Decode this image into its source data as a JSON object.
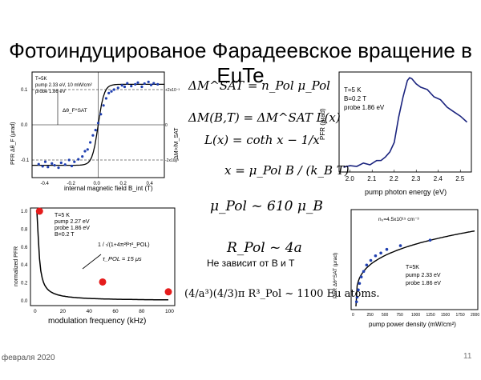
{
  "slide": {
    "title": "Фотоиндуцированое Фарадеевское вращение в EuTe",
    "date": "февраля 2020",
    "page": "11"
  },
  "formulas": {
    "f1": "ΔM^SAT = n_Pol μ_Pol",
    "f2": "ΔM(B,T) = ΔM^SAT L(x)",
    "f3": "L(x) = coth x − 1/x",
    "f4": "x = μ_Pol B / (k_B T)",
    "f5": "μ_Pol ~ 610 μ_B",
    "f6": "R_Pol ~ 4a",
    "f7": "(4/a³)(4/3)π R³_Pol ~ 1100 Eu atoms."
  },
  "notes": {
    "independence": "Не зависит от B и T"
  },
  "chart_data": [
    {
      "type": "scatter",
      "xlabel": "internal magnetic field B_int (T)",
      "ylabel": "PFR Δθ_F (μrad)",
      "y2label": "<ΔM>/M_SAT",
      "xlim": [
        -0.5,
        0.5
      ],
      "ylim": [
        -0.15,
        0.15
      ],
      "xticks": [
        "-0.4",
        "-0.2",
        "0.0",
        "0.2",
        "0.4"
      ],
      "yticks": [
        "-0.1",
        "0.0",
        "0.1"
      ],
      "y2ticks": [
        "+2x10⁻³",
        "0",
        "-2x10⁻³"
      ],
      "annotations": [
        "T=5K",
        "pump 2.33 eV, 10 mW/cm²",
        "probe 1.86 eV",
        "Δθ_F^SAT"
      ],
      "series": [
        {
          "x": [
            -0.45,
            -0.42,
            -0.4,
            -0.38,
            -0.35,
            -0.33,
            -0.3,
            -0.28,
            -0.25,
            -0.22,
            -0.2,
            -0.18,
            -0.15,
            -0.12,
            -0.1,
            -0.08,
            -0.06,
            -0.04,
            -0.02,
            0.0,
            0.02,
            0.04,
            0.06,
            0.08,
            0.1,
            0.12,
            0.15,
            0.18,
            0.2,
            0.22,
            0.25,
            0.28,
            0.3,
            0.33,
            0.35,
            0.38,
            0.4,
            0.42,
            0.45
          ],
          "values": [
            -0.112,
            -0.118,
            -0.105,
            -0.12,
            -0.11,
            -0.115,
            -0.122,
            -0.108,
            -0.113,
            -0.1,
            -0.117,
            -0.105,
            -0.098,
            -0.09,
            -0.075,
            -0.07,
            -0.05,
            -0.03,
            -0.015,
            0.005,
            0.03,
            0.055,
            0.075,
            0.09,
            0.095,
            0.1,
            0.105,
            0.112,
            0.108,
            0.118,
            0.11,
            0.115,
            0.12,
            0.108,
            0.117,
            0.122,
            0.113,
            0.118,
            0.115
          ]
        }
      ]
    },
    {
      "type": "line",
      "xlabel": "pump photon energy (eV)",
      "ylabel": "PFR (μrad)",
      "xlim": [
        1.95,
        2.55
      ],
      "xticks": [
        "2.0",
        "2.1",
        "2.2",
        "2.3",
        "2.4",
        "2.5"
      ],
      "annotations": [
        "T=5 K",
        "B=0.2 T",
        "probe 1.86 eV"
      ],
      "series": [
        {
          "x": [
            1.97,
            2.0,
            2.03,
            2.06,
            2.09,
            2.12,
            2.14,
            2.16,
            2.18,
            2.2,
            2.22,
            2.24,
            2.26,
            2.27,
            2.28,
            2.3,
            2.32,
            2.35,
            2.38,
            2.41,
            2.44,
            2.47,
            2.5,
            2.53
          ],
          "values": [
            0.02,
            0.03,
            0.04,
            0.05,
            0.06,
            0.08,
            0.1,
            0.13,
            0.18,
            0.3,
            0.55,
            0.8,
            0.95,
            1.0,
            0.98,
            0.92,
            0.9,
            0.85,
            0.8,
            0.74,
            0.68,
            0.62,
            0.57,
            0.52
          ]
        }
      ]
    },
    {
      "type": "scatter",
      "xlabel": "modulation frequency (kHz)",
      "ylabel": "normalized PFR",
      "xlim": [
        0,
        100
      ],
      "ylim": [
        0,
        1.0
      ],
      "xticks": [
        "0",
        "20",
        "40",
        "60",
        "80",
        "100"
      ],
      "yticks": [
        "0.0",
        "0.2",
        "0.4",
        "0.6",
        "0.8",
        "1.0"
      ],
      "annotations": [
        "T=5 K",
        "pump 2.27 eV",
        "probe 1.86 eV",
        "B=0.2 T",
        "1 / √(1+4π²f²τ²_POL)",
        "τ_POL = 15 μs"
      ],
      "series": [
        {
          "x": [
            2,
            50,
            100
          ],
          "values": [
            1.0,
            0.21,
            0.1
          ]
        }
      ]
    },
    {
      "type": "scatter",
      "xlabel": "pump power density (mW/cm²)",
      "ylabel": "PFR Δθ^SAT (μrad)",
      "xlim": [
        0,
        2000
      ],
      "xticks": [
        "0",
        "250",
        "500",
        "750",
        "1000",
        "1250",
        "1500",
        "1750",
        "2000"
      ],
      "annotations": [
        "n₀=4.5x10¹⁵ cm⁻³",
        "T=5K",
        "pump 2.33 eV",
        "probe 1.86 eV"
      ],
      "series": [
        {
          "x": [
            10,
            20,
            40,
            60,
            90,
            130,
            180,
            250,
            330,
            420,
            520,
            750,
            1250
          ],
          "values": [
            0.05,
            0.1,
            0.18,
            0.25,
            0.32,
            0.38,
            0.45,
            0.5,
            0.55,
            0.58,
            0.62,
            0.66,
            0.72
          ]
        }
      ]
    }
  ]
}
